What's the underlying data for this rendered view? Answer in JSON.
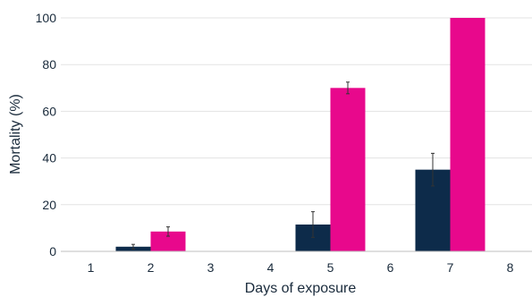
{
  "chart_data": {
    "type": "bar",
    "xlabel": "Days of exposure",
    "ylabel": "Mortality (%)",
    "categories": [
      "1",
      "2",
      "3",
      "4",
      "5",
      "6",
      "7",
      "8"
    ],
    "ylim": [
      0,
      100
    ],
    "yticks": [
      0,
      20,
      40,
      60,
      80,
      100
    ],
    "grid": true,
    "series": [
      {
        "color": "#0d2b4a",
        "values": [
          null,
          2,
          null,
          null,
          11.5,
          null,
          35,
          null
        ],
        "errors": [
          null,
          1,
          null,
          null,
          5.5,
          null,
          7,
          null
        ]
      },
      {
        "color": "#e8088c",
        "values": [
          null,
          8.5,
          null,
          null,
          70,
          null,
          100,
          null
        ],
        "errors": [
          null,
          2,
          null,
          null,
          2.5,
          null,
          null,
          null
        ]
      }
    ]
  }
}
